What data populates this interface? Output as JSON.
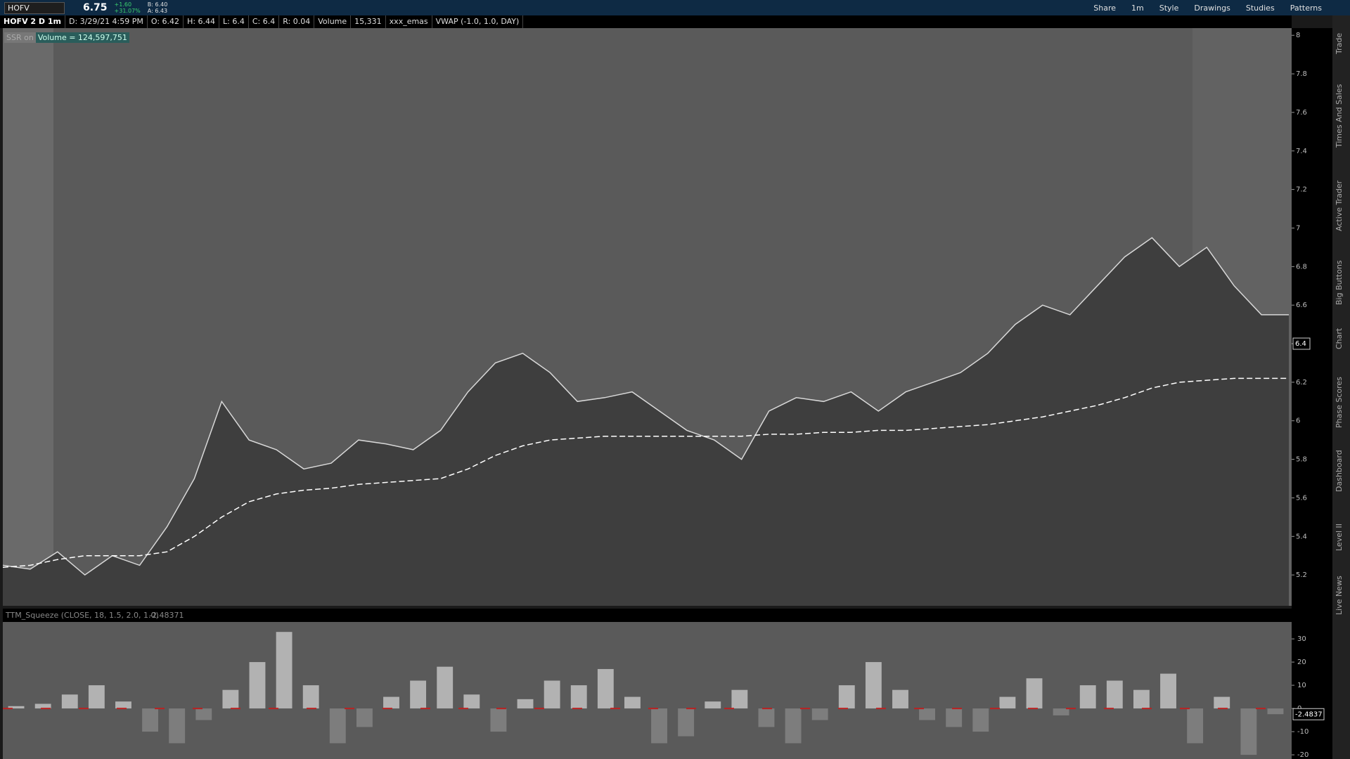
{
  "toolbar": {
    "symbol": "HOFV",
    "last": "6.75",
    "change": "+1.60",
    "change_pct": "+31.07%",
    "bid": "B: 6.40",
    "ask": "A: 6.43",
    "buttons": [
      "Share",
      "1m",
      "Style",
      "Drawings",
      "Studies",
      "Patterns"
    ]
  },
  "info_bar": [
    "HOFV 2 D 1m",
    "D: 3/29/21 4:59 PM",
    "O: 6.42",
    "H: 6.44",
    "L: 6.4",
    "C: 6.4",
    "R: 0.04",
    "Volume",
    "15,331",
    "xxx_emas",
    "VWAP (-1.0, 1.0, DAY)"
  ],
  "badges": [
    "SSR on",
    "Volume = 124,597,751"
  ],
  "side_tabs": [
    "Trade",
    "Times And Sales",
    "Active Trader",
    "Big Buttons",
    "Chart",
    "Phase Scores",
    "Dashboard",
    "Level II",
    "Live News"
  ],
  "chart_data": [
    {
      "type": "line",
      "series": [
        {
          "color": "#d8d8d8",
          "values": [
            5.25,
            5.23,
            5.32,
            5.2,
            5.3,
            5.25,
            5.45,
            5.7,
            6.1,
            5.9,
            5.85,
            5.75,
            5.78,
            5.9,
            5.88,
            5.85,
            5.95,
            6.15,
            6.3,
            6.35,
            6.25,
            6.1,
            6.12,
            6.15,
            6.05,
            5.95,
            5.9,
            5.8,
            6.05,
            6.12,
            6.1,
            6.15,
            6.05,
            6.15,
            6.2,
            6.25,
            6.35,
            6.5,
            6.6,
            6.55,
            6.7,
            6.85,
            6.95,
            6.8,
            6.9,
            6.7,
            6.55,
            6.55
          ]
        },
        {
          "color": "#ffffff",
          "dashed": true,
          "values": [
            5.24,
            5.25,
            5.28,
            5.3,
            5.3,
            5.3,
            5.32,
            5.4,
            5.5,
            5.58,
            5.62,
            5.64,
            5.65,
            5.67,
            5.68,
            5.69,
            5.7,
            5.75,
            5.82,
            5.87,
            5.9,
            5.91,
            5.92,
            5.92,
            5.92,
            5.92,
            5.92,
            5.92,
            5.93,
            5.93,
            5.94,
            5.94,
            5.95,
            5.95,
            5.96,
            5.97,
            5.98,
            6.0,
            6.02,
            6.05,
            6.08,
            6.12,
            6.17,
            6.2,
            6.21,
            6.22,
            6.22,
            6.22
          ]
        }
      ],
      "ylim": [
        5.04,
        8.03
      ],
      "yticks": [
        5.2,
        5.4,
        5.6,
        5.8,
        6,
        6.2,
        6.4,
        6.6,
        6.8,
        7,
        7.2,
        7.4,
        7.6,
        7.8,
        8
      ],
      "last_value": 6.4
    },
    {
      "type": "bar",
      "title": "TTM_Squeeze (CLOSE, 18, 1.5, 2.0, 1.0)",
      "subtitle": "-2.48371",
      "marker_label": "-2.4837",
      "colors": {
        "positive": "#d0d0d0",
        "negative": "#8a8a8a"
      },
      "values": [
        1,
        2,
        6,
        10,
        3,
        -10,
        -15,
        -5,
        8,
        20,
        33,
        10,
        -15,
        -8,
        5,
        12,
        18,
        6,
        -10,
        4,
        12,
        10,
        17,
        5,
        -15,
        -12,
        3,
        8,
        -8,
        -15,
        -5,
        10,
        20,
        8,
        -5,
        -8,
        -10,
        5,
        13,
        -3,
        10,
        12,
        8,
        15,
        -15,
        5,
        -20,
        -2.48
      ],
      "ylim": [
        -21.8,
        37.3
      ],
      "yticks": [
        -20,
        -10,
        0,
        10,
        20,
        30
      ]
    }
  ]
}
